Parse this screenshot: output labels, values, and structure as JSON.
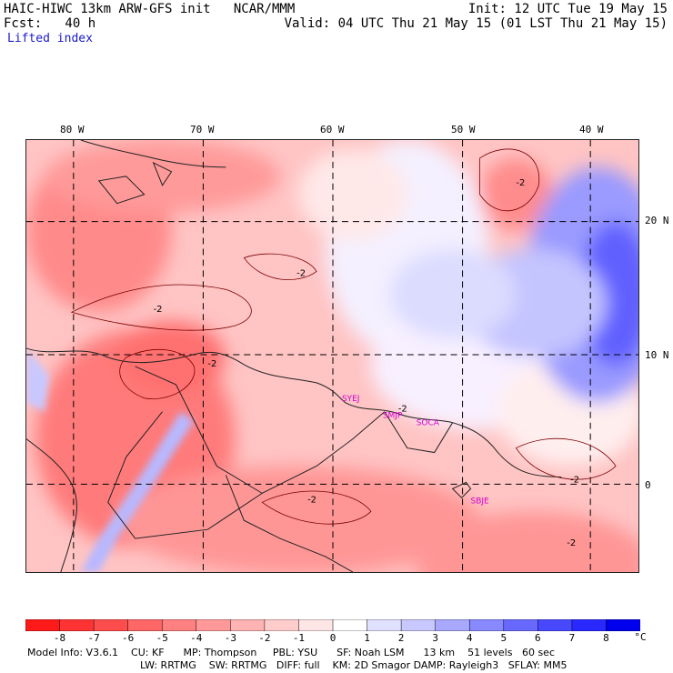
{
  "header": {
    "title": "HAIC-HIWC 13km ARW-GFS init   NCAR/MMM",
    "init": "Init: 12 UTC Tue 19 May 15",
    "fcst": "Fcst:   40 h",
    "valid": "Valid: 04 UTC Thu 21 May 15 (01 LST Thu 21 May 15)",
    "field": "Lifted index"
  },
  "axes": {
    "lon_labels": [
      "80 W",
      "70 W",
      "60 W",
      "50 W",
      "40 W"
    ],
    "lat_labels": [
      "20 N",
      "10 N",
      "0"
    ]
  },
  "sites": [
    "SYEJ",
    "SMJP",
    "SOCA",
    "SBJE"
  ],
  "colorbar": {
    "labels": [
      "-8",
      "-7",
      "-6",
      "-5",
      "-4",
      "-3",
      "-2",
      "-1",
      "0",
      "1",
      "2",
      "3",
      "4",
      "5",
      "6",
      "7",
      "8"
    ],
    "unit": "°C",
    "colors": [
      "#ff1a1a",
      "#ff3333",
      "#ff4d4d",
      "#ff6666",
      "#ff8080",
      "#ff9999",
      "#ffb3b3",
      "#ffcccc",
      "#ffe6e6",
      "#ffffff",
      "#e0e0ff",
      "#c8c8ff",
      "#a8a8ff",
      "#8888ff",
      "#6868ff",
      "#4848ff",
      "#2828ff",
      "#0000ee"
    ]
  },
  "contour_labels": [
    "-2",
    "-2",
    "-2",
    "-2",
    "-2",
    "-2",
    "-2",
    "-2"
  ],
  "model_info": {
    "line1": "Model Info: V3.6.1    CU: KF      MP: Thompson     PBL: YSU      SF: Noah LSM      13 km    51 levels   60 sec",
    "line2": "LW: RRTMG    SW: RRTMG   DIFF: full    KM: 2D Smagor DAMP: Rayleigh3   SFLAY: MM5"
  }
}
